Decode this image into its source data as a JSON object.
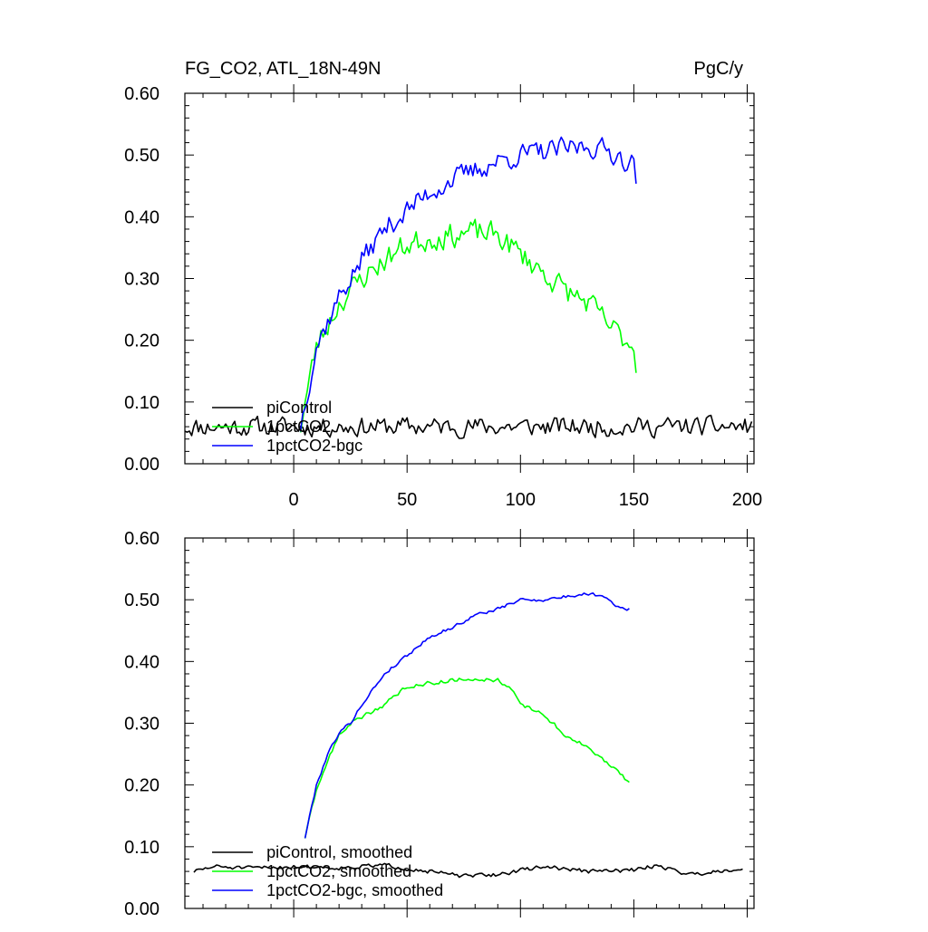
{
  "chart_data": [
    {
      "type": "line",
      "title": "FG_CO2, ATL_18N-49N",
      "units": "PgC/y",
      "xlim": [
        -48,
        203
      ],
      "ylim": [
        0.0,
        0.6
      ],
      "xticks": [
        "0",
        "50",
        "100",
        "150",
        "200"
      ],
      "xtick_values": [
        0,
        50,
        100,
        150,
        200
      ],
      "yticks": [
        "0.00",
        "0.10",
        "0.20",
        "0.30",
        "0.40",
        "0.50",
        "0.60"
      ],
      "ytick_values": [
        0.0,
        0.1,
        0.2,
        0.3,
        0.4,
        0.5,
        0.6
      ],
      "series": [
        {
          "name": "piControl",
          "color": "#000000",
          "x_start": -48,
          "x_end": 202,
          "base": [
            [
              -48,
              0.06
            ],
            [
              202,
              0.06
            ]
          ],
          "noise": 0.014,
          "seed": 11
        },
        {
          "name": "1pctCO2",
          "color": "#00ff00",
          "x_start": 3,
          "x_end": 151,
          "base": [
            [
              3,
              0.06
            ],
            [
              5,
              0.1
            ],
            [
              10,
              0.19
            ],
            [
              20,
              0.26
            ],
            [
              30,
              0.3
            ],
            [
              40,
              0.33
            ],
            [
              50,
              0.355
            ],
            [
              60,
              0.365
            ],
            [
              70,
              0.37
            ],
            [
              80,
              0.375
            ],
            [
              90,
              0.37
            ],
            [
              100,
              0.34
            ],
            [
              110,
              0.31
            ],
            [
              120,
              0.28
            ],
            [
              130,
              0.26
            ],
            [
              140,
              0.22
            ],
            [
              150,
              0.19
            ],
            [
              151,
              0.165
            ]
          ],
          "noise": 0.018,
          "seed": 23
        },
        {
          "name": "1pctCO2-bgc",
          "color": "#0000ff",
          "x_start": 3,
          "x_end": 151,
          "base": [
            [
              3,
              0.06
            ],
            [
              5,
              0.1
            ],
            [
              10,
              0.19
            ],
            [
              20,
              0.27
            ],
            [
              30,
              0.33
            ],
            [
              40,
              0.38
            ],
            [
              50,
              0.41
            ],
            [
              60,
              0.44
            ],
            [
              70,
              0.46
            ],
            [
              80,
              0.475
            ],
            [
              90,
              0.49
            ],
            [
              100,
              0.5
            ],
            [
              110,
              0.505
            ],
            [
              120,
              0.51
            ],
            [
              130,
              0.515
            ],
            [
              140,
              0.505
            ],
            [
              150,
              0.485
            ],
            [
              151,
              0.465
            ]
          ],
          "noise": 0.016,
          "seed": 37
        }
      ],
      "legend": {
        "placement": "bottom-left",
        "entries": [
          "piControl",
          "1pctCO2",
          "1pctCO2-bgc"
        ]
      }
    },
    {
      "type": "line",
      "title": "",
      "xlim": [
        -48,
        203
      ],
      "ylim": [
        0.0,
        0.6
      ],
      "xticks": [
        "0",
        "50",
        "100",
        "150",
        "200"
      ],
      "xtick_values": [
        0,
        50,
        100,
        150,
        200
      ],
      "show_xtick_labels": false,
      "yticks": [
        "0.00",
        "0.10",
        "0.20",
        "0.30",
        "0.40",
        "0.50",
        "0.60"
      ],
      "ytick_values": [
        0.0,
        0.1,
        0.2,
        0.3,
        0.4,
        0.5,
        0.6
      ],
      "series": [
        {
          "name": "piControl, smoothed",
          "color": "#000000",
          "x_start": -44,
          "x_end": 198,
          "base": [
            [
              -44,
              0.06
            ],
            [
              -35,
              0.068
            ],
            [
              -20,
              0.065
            ],
            [
              0,
              0.068
            ],
            [
              20,
              0.066
            ],
            [
              40,
              0.07
            ],
            [
              60,
              0.06
            ],
            [
              75,
              0.052
            ],
            [
              90,
              0.055
            ],
            [
              110,
              0.068
            ],
            [
              130,
              0.06
            ],
            [
              150,
              0.062
            ],
            [
              160,
              0.07
            ],
            [
              175,
              0.055
            ],
            [
              190,
              0.062
            ],
            [
              198,
              0.065
            ]
          ],
          "noise": 0.003,
          "seed": 51
        },
        {
          "name": "1pctCO2, smoothed",
          "color": "#00ff00",
          "x_start": 5,
          "x_end": 148,
          "base": [
            [
              5,
              0.115
            ],
            [
              10,
              0.19
            ],
            [
              15,
              0.24
            ],
            [
              20,
              0.28
            ],
            [
              25,
              0.3
            ],
            [
              30,
              0.31
            ],
            [
              40,
              0.33
            ],
            [
              50,
              0.36
            ],
            [
              60,
              0.365
            ],
            [
              70,
              0.37
            ],
            [
              80,
              0.372
            ],
            [
              90,
              0.37
            ],
            [
              95,
              0.36
            ],
            [
              100,
              0.33
            ],
            [
              110,
              0.315
            ],
            [
              120,
              0.28
            ],
            [
              130,
              0.26
            ],
            [
              140,
              0.23
            ],
            [
              148,
              0.205
            ]
          ],
          "noise": 0.003,
          "seed": 63
        },
        {
          "name": "1pctCO2-bgc, smoothed",
          "color": "#0000ff",
          "x_start": 5,
          "x_end": 148,
          "base": [
            [
              5,
              0.115
            ],
            [
              10,
              0.2
            ],
            [
              15,
              0.25
            ],
            [
              20,
              0.285
            ],
            [
              25,
              0.3
            ],
            [
              30,
              0.33
            ],
            [
              40,
              0.38
            ],
            [
              50,
              0.41
            ],
            [
              60,
              0.44
            ],
            [
              70,
              0.455
            ],
            [
              80,
              0.475
            ],
            [
              90,
              0.485
            ],
            [
              100,
              0.5
            ],
            [
              110,
              0.5
            ],
            [
              120,
              0.505
            ],
            [
              130,
              0.51
            ],
            [
              138,
              0.505
            ],
            [
              142,
              0.49
            ],
            [
              148,
              0.485
            ]
          ],
          "noise": 0.0025,
          "seed": 79
        }
      ],
      "legend": {
        "placement": "bottom-left",
        "entries": [
          "piControl, smoothed",
          "1pctCO2, smoothed",
          "1pctCO2-bgc, smoothed"
        ]
      }
    }
  ]
}
